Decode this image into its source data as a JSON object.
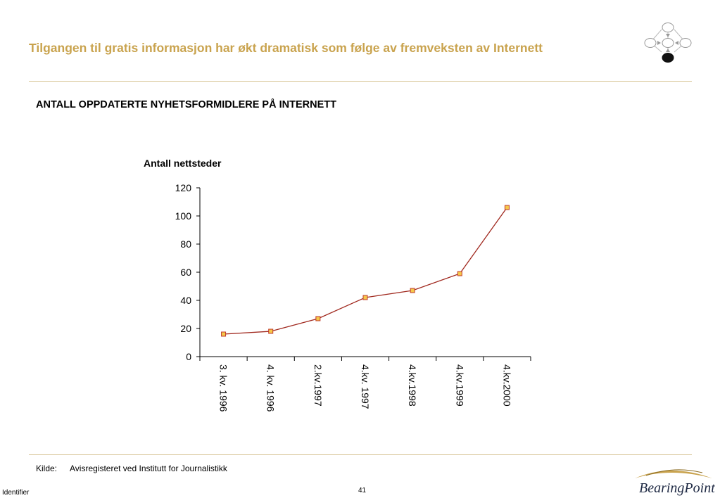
{
  "slide": {
    "title": "Tilgangen til gratis informasjon har økt dramatisk som følge av fremveksten av Internett",
    "subtitle": "ANTALL OPPDATERTE NYHETSFORMIDLERE PÅ INTERNETT",
    "source_label": "Kilde:",
    "source_text": "Avisregisteret ved Institutt for Journalistikk",
    "identifier": "Identifier",
    "page_number": "41",
    "logo_text": "BearingPoint",
    "colors": {
      "title": "#c9a34e",
      "rule": "#d9c79a",
      "line": "#a0281e",
      "marker_fill": "#f5c84a",
      "marker_stroke": "#c0392b"
    }
  },
  "chart_data": {
    "type": "line",
    "title": "",
    "ylabel": "Antall nettsteder",
    "xlabel": "",
    "categories": [
      "3. kv. 1996",
      "4. kv. 1996",
      "2.kv.1997",
      "4.kv. 1997",
      "4.kv.1998",
      "4.kv.1999",
      "4.kv.2000"
    ],
    "series": [
      {
        "values": [
          16,
          18,
          27,
          42,
          47,
          59,
          106
        ]
      }
    ],
    "ylim": [
      0,
      120
    ],
    "yticks": [
      "0",
      "20",
      "40",
      "60",
      "80",
      "100",
      "120"
    ],
    "grid": false,
    "legend": "none"
  }
}
